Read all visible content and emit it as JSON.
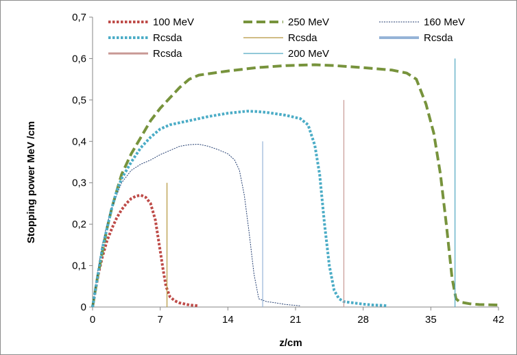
{
  "chart_data": {
    "type": "line",
    "title": "",
    "xlabel": "z/cm",
    "ylabel": "Stopping power MeV /cm",
    "xlim": [
      0,
      42
    ],
    "ylim": [
      0,
      0.7
    ],
    "x_ticks": [
      "0",
      "7",
      "14",
      "21",
      "28",
      "35",
      "42"
    ],
    "y_ticks": [
      "0",
      "0,1",
      "0,2",
      "0,3",
      "0,4",
      "0,5",
      "0,6",
      "0,7"
    ],
    "grid": false,
    "legend_position": "top",
    "series": [
      {
        "name": "100 MeV",
        "color": "#be4b48",
        "style": "dotted-thick",
        "points": [
          [
            0,
            0
          ],
          [
            0.3,
            0.04
          ],
          [
            0.6,
            0.08
          ],
          [
            1,
            0.12
          ],
          [
            1.5,
            0.16
          ],
          [
            2,
            0.19
          ],
          [
            2.5,
            0.215
          ],
          [
            3,
            0.235
          ],
          [
            3.5,
            0.25
          ],
          [
            4,
            0.262
          ],
          [
            4.5,
            0.268
          ],
          [
            5,
            0.27
          ],
          [
            5.5,
            0.265
          ],
          [
            6,
            0.25
          ],
          [
            6.5,
            0.21
          ],
          [
            6.9,
            0.15
          ],
          [
            7.3,
            0.09
          ],
          [
            7.6,
            0.05
          ],
          [
            8,
            0.025
          ],
          [
            8.5,
            0.015
          ],
          [
            9,
            0.01
          ],
          [
            10,
            0.005
          ],
          [
            11,
            0.003
          ]
        ]
      },
      {
        "name": "250 MeV",
        "color": "#77933c",
        "style": "dashed-thick",
        "points": [
          [
            0,
            0
          ],
          [
            0.5,
            0.07
          ],
          [
            1,
            0.13
          ],
          [
            1.5,
            0.19
          ],
          [
            2,
            0.24
          ],
          [
            2.5,
            0.28
          ],
          [
            3,
            0.32
          ],
          [
            4,
            0.37
          ],
          [
            5,
            0.41
          ],
          [
            6,
            0.45
          ],
          [
            7,
            0.48
          ],
          [
            8,
            0.505
          ],
          [
            9,
            0.53
          ],
          [
            10,
            0.55
          ],
          [
            11,
            0.56
          ],
          [
            14,
            0.57
          ],
          [
            17,
            0.578
          ],
          [
            20,
            0.583
          ],
          [
            23,
            0.585
          ],
          [
            25,
            0.583
          ],
          [
            28,
            0.578
          ],
          [
            31,
            0.572
          ],
          [
            32.5,
            0.565
          ],
          [
            33.5,
            0.55
          ],
          [
            34.5,
            0.49
          ],
          [
            35.3,
            0.42
          ],
          [
            36,
            0.32
          ],
          [
            36.6,
            0.2
          ],
          [
            37.2,
            0.07
          ],
          [
            37.6,
            0.02
          ],
          [
            38,
            0.012
          ],
          [
            39,
            0.008
          ],
          [
            40,
            0.006
          ],
          [
            42,
            0.005
          ]
        ]
      },
      {
        "name": "160 MeV",
        "color": "#1f3a6e",
        "style": "thin-dotted",
        "points": [
          [
            0,
            0
          ],
          [
            0.5,
            0.08
          ],
          [
            1,
            0.15
          ],
          [
            1.5,
            0.2
          ],
          [
            2,
            0.24
          ],
          [
            2.5,
            0.27
          ],
          [
            3,
            0.3
          ],
          [
            4,
            0.33
          ],
          [
            5,
            0.345
          ],
          [
            6,
            0.355
          ],
          [
            7,
            0.368
          ],
          [
            8,
            0.378
          ],
          [
            9,
            0.388
          ],
          [
            10,
            0.392
          ],
          [
            11,
            0.393
          ],
          [
            12,
            0.388
          ],
          [
            13,
            0.38
          ],
          [
            14,
            0.37
          ],
          [
            14.7,
            0.355
          ],
          [
            15.2,
            0.33
          ],
          [
            15.7,
            0.27
          ],
          [
            16.2,
            0.18
          ],
          [
            16.7,
            0.08
          ],
          [
            17.2,
            0.02
          ],
          [
            18,
            0.013
          ],
          [
            19,
            0.01
          ],
          [
            20,
            0.006
          ],
          [
            21,
            0.004
          ],
          [
            21.5,
            0.003
          ]
        ]
      },
      {
        "name": "Rcsda",
        "color": "#4bacc6",
        "style": "dotted-thick",
        "points": [
          [
            0,
            0
          ],
          [
            0.5,
            0.07
          ],
          [
            1,
            0.14
          ],
          [
            1.5,
            0.19
          ],
          [
            2,
            0.24
          ],
          [
            2.5,
            0.28
          ],
          [
            3,
            0.31
          ],
          [
            4,
            0.35
          ],
          [
            5,
            0.385
          ],
          [
            6,
            0.41
          ],
          [
            7,
            0.43
          ],
          [
            8,
            0.44
          ],
          [
            10,
            0.45
          ],
          [
            12,
            0.46
          ],
          [
            14,
            0.468
          ],
          [
            16,
            0.473
          ],
          [
            17,
            0.472
          ],
          [
            18,
            0.47
          ],
          [
            20,
            0.463
          ],
          [
            21.5,
            0.455
          ],
          [
            22.3,
            0.44
          ],
          [
            23,
            0.39
          ],
          [
            23.5,
            0.32
          ],
          [
            24,
            0.2
          ],
          [
            24.5,
            0.1
          ],
          [
            25,
            0.04
          ],
          [
            25.5,
            0.02
          ],
          [
            26,
            0.013
          ],
          [
            27,
            0.01
          ],
          [
            28,
            0.007
          ],
          [
            29,
            0.005
          ],
          [
            30,
            0.004
          ],
          [
            30.5,
            0.003
          ]
        ]
      },
      {
        "name": "Rcsda",
        "color": "#b3953a",
        "style": "vline",
        "x": 7.7,
        "top": 0.3
      },
      {
        "name": "Rcsda",
        "color": "#95b3d7",
        "style": "vline",
        "x": 17.6,
        "top": 0.4
      },
      {
        "name": "Rcsda",
        "color": "#c89894",
        "style": "vline",
        "x": 26,
        "top": 0.5
      },
      {
        "name": "200 MeV",
        "color": "#4fa7c0",
        "style": "vline",
        "x": 37.5,
        "top": 0.6
      }
    ]
  }
}
